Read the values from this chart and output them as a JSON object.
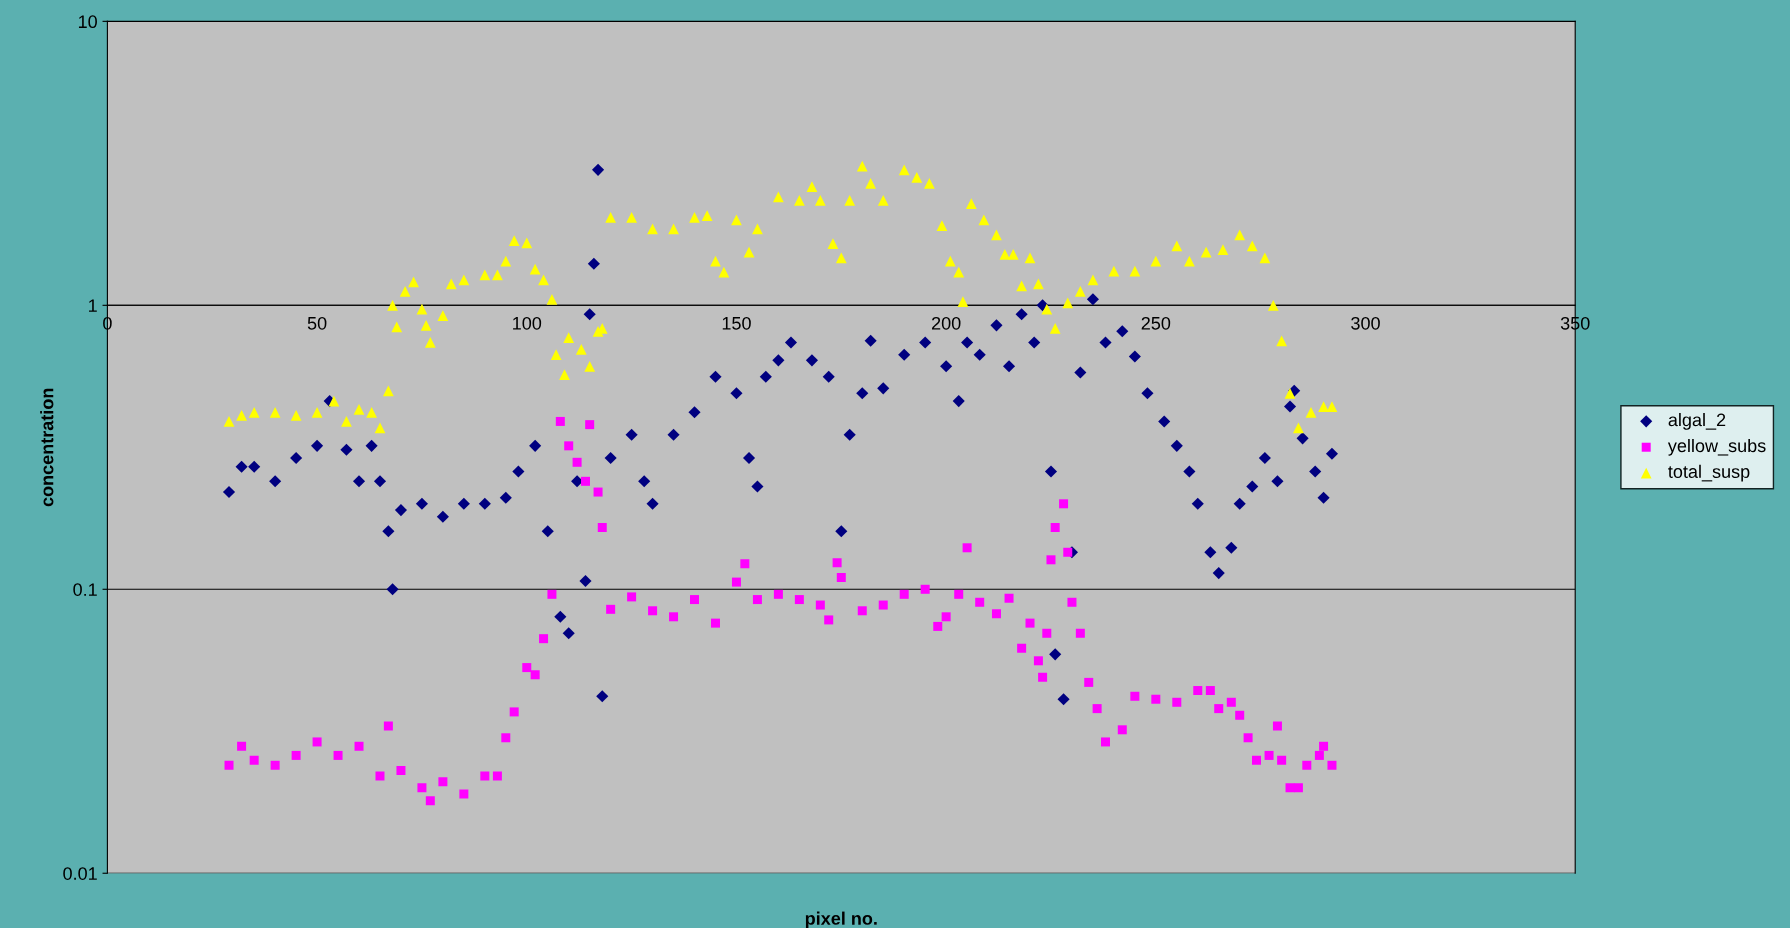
{
  "chart_data": {
    "type": "scatter",
    "xlabel": "pixel no.",
    "ylabel": "concentration",
    "log": "y",
    "xlim": [
      0,
      350
    ],
    "xticks": [
      0,
      50,
      100,
      150,
      200,
      250,
      300,
      350
    ],
    "ylim": [
      0.01,
      10
    ],
    "yticks": [
      0.01,
      0.1,
      1,
      10
    ],
    "grid": "y",
    "legend": "right",
    "series": [
      {
        "name": "algal_2",
        "color": "#000080",
        "marker": "diamond",
        "x": [
          29,
          32,
          35,
          40,
          45,
          50,
          53,
          57,
          60,
          63,
          65,
          67,
          68,
          70,
          75,
          80,
          85,
          90,
          95,
          98,
          102,
          105,
          108,
          110,
          112,
          114,
          115,
          116,
          117,
          118,
          120,
          125,
          128,
          130,
          135,
          140,
          145,
          150,
          153,
          155,
          157,
          160,
          163,
          168,
          172,
          175,
          177,
          180,
          182,
          185,
          190,
          195,
          200,
          203,
          205,
          208,
          212,
          215,
          218,
          221,
          223,
          225,
          226,
          228,
          230,
          232,
          235,
          238,
          242,
          245,
          248,
          252,
          255,
          258,
          260,
          263,
          265,
          268,
          270,
          273,
          276,
          279,
          282,
          283,
          285,
          288,
          290,
          292
        ],
        "values": [
          0.22,
          0.27,
          0.27,
          0.24,
          0.29,
          0.32,
          0.46,
          0.31,
          0.24,
          0.32,
          0.24,
          0.16,
          0.1,
          0.19,
          0.2,
          0.18,
          0.2,
          0.2,
          0.21,
          0.26,
          0.32,
          0.16,
          0.08,
          0.07,
          0.24,
          0.107,
          0.93,
          1.4,
          3.0,
          0.042,
          0.29,
          0.35,
          0.24,
          0.2,
          0.35,
          0.42,
          0.56,
          0.49,
          0.29,
          0.23,
          0.56,
          0.64,
          0.74,
          0.64,
          0.56,
          0.16,
          0.35,
          0.49,
          0.75,
          0.51,
          0.67,
          0.74,
          0.61,
          0.46,
          0.74,
          0.67,
          0.85,
          0.61,
          0.93,
          0.74,
          1.0,
          0.26,
          0.059,
          0.041,
          0.135,
          0.58,
          1.05,
          0.74,
          0.81,
          0.66,
          0.49,
          0.39,
          0.32,
          0.26,
          0.2,
          0.135,
          0.114,
          0.14,
          0.2,
          0.23,
          0.29,
          0.24,
          0.44,
          0.5,
          0.34,
          0.26,
          0.21,
          0.3
        ]
      },
      {
        "name": "yellow_subs",
        "color": "#ff00ff",
        "marker": "square",
        "x": [
          29,
          32,
          35,
          40,
          45,
          50,
          55,
          60,
          65,
          67,
          70,
          75,
          77,
          80,
          85,
          90,
          93,
          95,
          97,
          100,
          102,
          104,
          106,
          108,
          110,
          112,
          114,
          115,
          117,
          118,
          120,
          125,
          130,
          135,
          140,
          145,
          150,
          152,
          155,
          160,
          165,
          170,
          172,
          174,
          175,
          180,
          185,
          190,
          195,
          198,
          200,
          203,
          205,
          208,
          212,
          215,
          218,
          220,
          222,
          223,
          224,
          225,
          226,
          228,
          229,
          230,
          232,
          234,
          236,
          238,
          242,
          245,
          250,
          255,
          260,
          263,
          265,
          268,
          270,
          272,
          274,
          277,
          279,
          280,
          282,
          284,
          286,
          289,
          290,
          292
        ],
        "values": [
          0.024,
          0.028,
          0.025,
          0.024,
          0.026,
          0.029,
          0.026,
          0.028,
          0.022,
          0.033,
          0.023,
          0.02,
          0.018,
          0.021,
          0.019,
          0.022,
          0.022,
          0.03,
          0.037,
          0.053,
          0.05,
          0.067,
          0.096,
          0.39,
          0.32,
          0.28,
          0.24,
          0.38,
          0.22,
          0.165,
          0.085,
          0.094,
          0.084,
          0.08,
          0.092,
          0.076,
          0.106,
          0.123,
          0.092,
          0.096,
          0.092,
          0.088,
          0.078,
          0.124,
          0.11,
          0.084,
          0.088,
          0.096,
          0.1,
          0.074,
          0.08,
          0.096,
          0.14,
          0.09,
          0.082,
          0.093,
          0.062,
          0.076,
          0.056,
          0.049,
          0.07,
          0.127,
          0.165,
          0.2,
          0.135,
          0.09,
          0.07,
          0.047,
          0.038,
          0.029,
          0.032,
          0.042,
          0.041,
          0.04,
          0.044,
          0.044,
          0.038,
          0.04,
          0.036,
          0.03,
          0.025,
          0.026,
          0.033,
          0.025,
          0.02,
          0.02,
          0.024,
          0.026,
          0.028,
          0.024
        ]
      },
      {
        "name": "total_susp",
        "color": "#ffff00",
        "marker": "triangle",
        "x": [
          29,
          32,
          35,
          40,
          45,
          50,
          54,
          57,
          60,
          63,
          65,
          67,
          68,
          69,
          71,
          73,
          75,
          76,
          77,
          80,
          82,
          85,
          90,
          93,
          95,
          97,
          100,
          102,
          104,
          106,
          107,
          109,
          110,
          113,
          115,
          117,
          118,
          120,
          125,
          130,
          135,
          140,
          143,
          145,
          147,
          150,
          153,
          155,
          160,
          165,
          168,
          170,
          173,
          175,
          177,
          180,
          182,
          185,
          190,
          193,
          196,
          199,
          201,
          203,
          204,
          206,
          209,
          212,
          214,
          216,
          218,
          220,
          222,
          224,
          226,
          229,
          232,
          235,
          240,
          245,
          250,
          255,
          258,
          262,
          266,
          270,
          273,
          276,
          278,
          280,
          282,
          284,
          287,
          290,
          292
        ],
        "values": [
          0.39,
          0.41,
          0.42,
          0.42,
          0.41,
          0.42,
          0.46,
          0.39,
          0.43,
          0.42,
          0.37,
          0.5,
          1.0,
          0.84,
          1.12,
          1.21,
          0.97,
          0.85,
          0.74,
          0.92,
          1.19,
          1.23,
          1.28,
          1.28,
          1.43,
          1.69,
          1.66,
          1.34,
          1.23,
          1.05,
          0.67,
          0.57,
          0.77,
          0.7,
          0.61,
          0.81,
          0.83,
          2.04,
          2.04,
          1.86,
          1.86,
          2.04,
          2.07,
          1.43,
          1.31,
          2.0,
          1.54,
          1.86,
          2.41,
          2.34,
          2.62,
          2.34,
          1.65,
          1.47,
          2.34,
          3.09,
          2.69,
          2.34,
          3.0,
          2.82,
          2.69,
          1.91,
          1.43,
          1.31,
          1.03,
          2.28,
          2.0,
          1.77,
          1.51,
          1.51,
          1.17,
          1.47,
          1.19,
          0.97,
          0.83,
          1.02,
          1.12,
          1.23,
          1.32,
          1.32,
          1.43,
          1.62,
          1.43,
          1.54,
          1.57,
          1.77,
          1.62,
          1.47,
          1.0,
          0.75,
          0.49,
          0.37,
          0.42,
          0.44,
          0.44
        ]
      }
    ]
  }
}
